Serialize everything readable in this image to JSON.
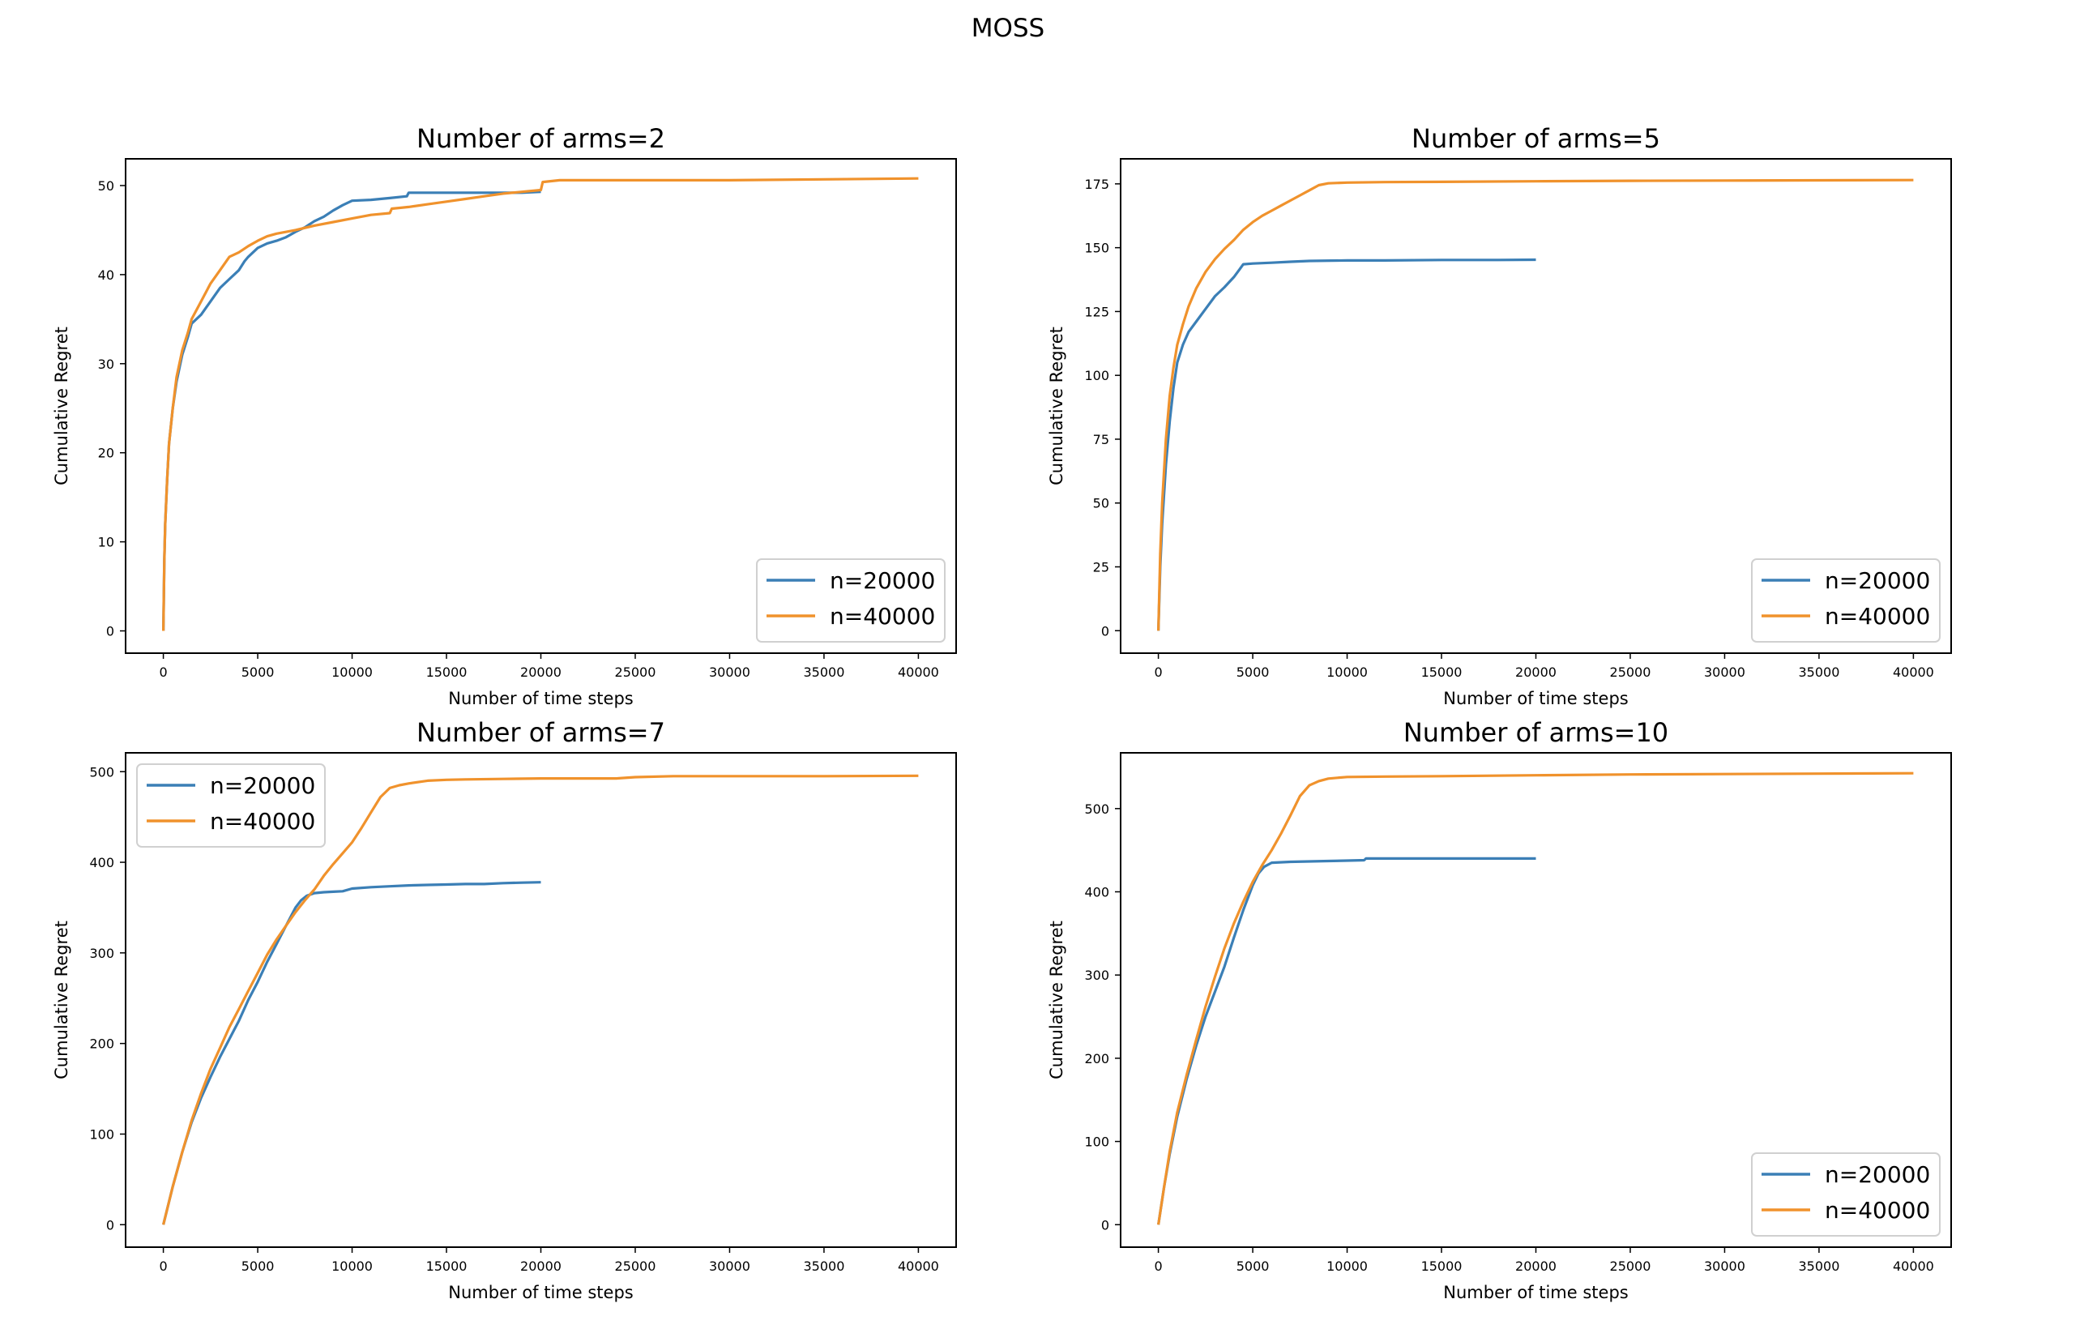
{
  "figure": {
    "title": "MOSS"
  },
  "colors": {
    "n20000": "#3b7fb6",
    "n40000": "#f0922c",
    "axes": "#000000",
    "legend_border": "#d0d0d0"
  },
  "chart_data": [
    {
      "type": "line",
      "title": "Number of arms=2",
      "xlabel": "Number of time steps",
      "ylabel": "Cumulative Regret",
      "xlim": [
        -2000,
        42000
      ],
      "ylim": [
        -2.5,
        53.0
      ],
      "xticks": [
        0,
        5000,
        10000,
        15000,
        20000,
        25000,
        30000,
        35000,
        40000
      ],
      "yticks": [
        0,
        10,
        20,
        30,
        40,
        50
      ],
      "grid": false,
      "legend": "lower-right",
      "series": [
        {
          "name": "n=20000",
          "color_key": "n20000",
          "x": [
            0,
            50,
            100,
            200,
            300,
            500,
            700,
            1000,
            1300,
            1500,
            2000,
            2500,
            3000,
            3500,
            4000,
            4300,
            4500,
            5000,
            5500,
            6000,
            6500,
            7000,
            7500,
            8000,
            8500,
            9000,
            9500,
            10000,
            11000,
            12000,
            12900,
            13000,
            14000,
            15000,
            16000,
            17000,
            18000,
            19000,
            20000
          ],
          "y": [
            0,
            8,
            12,
            17,
            21,
            25,
            28,
            31,
            33,
            34.5,
            35.5,
            37,
            38.5,
            39.5,
            40.5,
            41.5,
            42,
            43,
            43.5,
            43.8,
            44.2,
            44.8,
            45.3,
            46,
            46.5,
            47.2,
            47.8,
            48.3,
            48.4,
            48.6,
            48.8,
            49.2,
            49.2,
            49.2,
            49.2,
            49.2,
            49.2,
            49.2,
            49.3
          ]
        },
        {
          "name": "n=40000",
          "color_key": "n40000",
          "x": [
            0,
            50,
            100,
            200,
            300,
            500,
            700,
            1000,
            1300,
            1500,
            2000,
            2500,
            3000,
            3500,
            4000,
            4500,
            5000,
            5500,
            6000,
            7000,
            8000,
            9000,
            10000,
            11000,
            12000,
            12100,
            13000,
            14000,
            15000,
            16000,
            17000,
            18000,
            19000,
            20000,
            20100,
            21000,
            25000,
            30000,
            35000,
            40000
          ],
          "y": [
            0,
            8,
            12,
            17,
            21,
            25,
            28.5,
            31.5,
            33.5,
            35,
            37,
            39,
            40.5,
            42,
            42.5,
            43.2,
            43.8,
            44.3,
            44.6,
            45,
            45.5,
            45.9,
            46.3,
            46.7,
            46.9,
            47.4,
            47.6,
            47.9,
            48.2,
            48.5,
            48.8,
            49.1,
            49.3,
            49.5,
            50.4,
            50.6,
            50.6,
            50.6,
            50.7,
            50.8
          ]
        }
      ]
    },
    {
      "type": "line",
      "title": "Number of arms=5",
      "xlabel": "Number of time steps",
      "ylabel": "Cumulative Regret",
      "xlim": [
        -2000,
        42000
      ],
      "ylim": [
        -8.8,
        184.8
      ],
      "xticks": [
        0,
        5000,
        10000,
        15000,
        20000,
        25000,
        30000,
        35000,
        40000
      ],
      "yticks": [
        0,
        25,
        50,
        75,
        100,
        125,
        150,
        175
      ],
      "grid": false,
      "legend": "lower-right",
      "series": [
        {
          "name": "n=20000",
          "color_key": "n20000",
          "x": [
            0,
            100,
            200,
            400,
            600,
            800,
            1000,
            1300,
            1600,
            2000,
            2500,
            3000,
            3500,
            4000,
            4300,
            4500,
            5000,
            6000,
            7000,
            8000,
            10000,
            12000,
            15000,
            18000,
            20000
          ],
          "y": [
            0,
            25,
            42,
            65,
            82,
            95,
            105,
            112,
            117,
            121,
            126,
            131,
            134.5,
            138.5,
            141.5,
            143.5,
            143.8,
            144.1,
            144.5,
            144.8,
            145,
            145,
            145.2,
            145.2,
            145.3
          ]
        },
        {
          "name": "n=40000",
          "color_key": "n40000",
          "x": [
            0,
            100,
            200,
            400,
            600,
            800,
            1000,
            1300,
            1600,
            2000,
            2500,
            3000,
            3500,
            4000,
            4500,
            5000,
            5500,
            6000,
            6500,
            7000,
            7500,
            8000,
            8500,
            9000,
            10000,
            12000,
            15000,
            20000,
            25000,
            30000,
            35000,
            40000
          ],
          "y": [
            0,
            30,
            50,
            75,
            92,
            103,
            112,
            120,
            127,
            134,
            140.5,
            145.5,
            149.5,
            153,
            157,
            160,
            162.5,
            164.5,
            166.5,
            168.5,
            170.5,
            172.5,
            174.5,
            175.2,
            175.5,
            175.7,
            175.8,
            176,
            176.2,
            176.3,
            176.4,
            176.5
          ]
        }
      ]
    },
    {
      "type": "line",
      "title": "Number of arms=7",
      "xlabel": "Number of time steps",
      "ylabel": "Cumulative Regret",
      "xlim": [
        -2000,
        42000
      ],
      "ylim": [
        -24.8,
        520.8
      ],
      "xticks": [
        0,
        5000,
        10000,
        15000,
        20000,
        25000,
        30000,
        35000,
        40000
      ],
      "yticks": [
        0,
        100,
        200,
        300,
        400,
        500
      ],
      "grid": false,
      "legend": "upper-left",
      "series": [
        {
          "name": "n=20000",
          "color_key": "n20000",
          "x": [
            0,
            500,
            1000,
            1500,
            2000,
            2500,
            3000,
            3500,
            4000,
            4500,
            5000,
            5500,
            6000,
            6500,
            7000,
            7300,
            7600,
            8000,
            8500,
            9000,
            9500,
            10000,
            11000,
            12000,
            13000,
            14000,
            15000,
            16000,
            17000,
            18000,
            19000,
            20000
          ],
          "y": [
            0,
            42,
            80,
            113,
            140,
            163,
            185,
            205,
            225,
            248,
            268,
            290,
            310,
            330,
            350,
            358,
            363,
            366,
            367,
            367.5,
            368,
            371,
            372.5,
            373.5,
            374.5,
            375,
            375.5,
            376,
            376,
            377,
            377.5,
            378
          ]
        },
        {
          "name": "n=40000",
          "color_key": "n40000",
          "x": [
            0,
            500,
            1000,
            1500,
            2000,
            2500,
            3000,
            3500,
            4000,
            4500,
            5000,
            5500,
            6000,
            6500,
            7000,
            7500,
            8000,
            8500,
            9000,
            9500,
            10000,
            10500,
            11000,
            11500,
            12000,
            12500,
            13000,
            14000,
            15000,
            16000,
            18000,
            20000,
            24000,
            25000,
            27000,
            30000,
            35000,
            40000
          ],
          "y": [
            0,
            42,
            80,
            115,
            145,
            172,
            195,
            218,
            238,
            258,
            278,
            298,
            315,
            330,
            345,
            358,
            370,
            385,
            398,
            410,
            422,
            438,
            455,
            472,
            482,
            485,
            487,
            490,
            491,
            491.5,
            492,
            492.5,
            492.5,
            494,
            495,
            495,
            495,
            495.5
          ]
        }
      ]
    },
    {
      "type": "line",
      "title": "Number of arms=10",
      "xlabel": "Number of time steps",
      "ylabel": "Cumulative Regret",
      "xlim": [
        -2000,
        42000
      ],
      "ylim": [
        -27.0,
        567.0
      ],
      "xticks": [
        0,
        5000,
        10000,
        15000,
        20000,
        25000,
        30000,
        35000,
        40000
      ],
      "yticks": [
        0,
        100,
        200,
        300,
        400,
        500
      ],
      "grid": false,
      "legend": "lower-right",
      "series": [
        {
          "name": "n=20000",
          "color_key": "n20000",
          "x": [
            0,
            300,
            600,
            1000,
            1500,
            2000,
            2500,
            3000,
            3500,
            4000,
            4500,
            5000,
            5300,
            5600,
            6000,
            7000,
            8000,
            9000,
            10000,
            10900,
            11000,
            12000,
            15000,
            18000,
            20000
          ],
          "y": [
            0,
            45,
            85,
            130,
            175,
            215,
            250,
            280,
            310,
            345,
            378,
            408,
            422,
            430,
            435,
            436,
            436.5,
            437,
            437.5,
            438,
            440,
            440,
            440,
            440,
            440
          ]
        },
        {
          "name": "n=40000",
          "color_key": "n40000",
          "x": [
            0,
            300,
            600,
            1000,
            1500,
            2000,
            2500,
            3000,
            3500,
            4000,
            4500,
            5000,
            5500,
            6000,
            6500,
            7000,
            7500,
            8000,
            8500,
            9000,
            10000,
            12000,
            15000,
            20000,
            25000,
            30000,
            35000,
            40000
          ],
          "y": [
            0,
            45,
            88,
            135,
            180,
            222,
            262,
            298,
            332,
            362,
            388,
            412,
            432,
            450,
            470,
            492,
            515,
            528,
            533,
            536,
            538,
            538.5,
            539,
            540,
            541,
            541.5,
            542,
            542.5
          ]
        }
      ]
    }
  ]
}
